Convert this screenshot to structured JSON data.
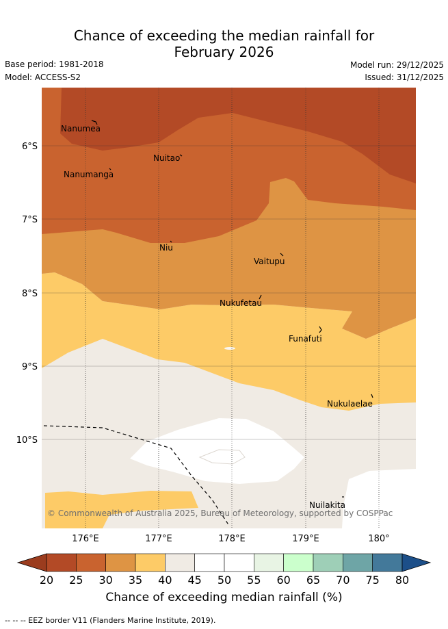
{
  "title_line1": "Chance of exceeding the median rainfall for",
  "title_line2": "February 2026",
  "base_period": "Base period: 1981-2018",
  "model": "Model: ACCESS-S2",
  "model_run": "Model run: 29/12/2025",
  "issued": "Issued: 31/12/2025",
  "places": {
    "nanumea": "Nanumea",
    "nuitao": "Nuitao",
    "nanumanga": "Nanumanga",
    "niu": "Niu",
    "vaitupu": "Vaitupu",
    "nukufetau": "Nukufetau",
    "funafuti": "Funafuti",
    "nukulaelae": "Nukulaelae",
    "nuilakita": "Nuilakita"
  },
  "lat_ticks": [
    "6°S",
    "7°S",
    "8°S",
    "9°S",
    "10°S"
  ],
  "lon_ticks": [
    "176°E",
    "177°E",
    "178°E",
    "179°E",
    "180°"
  ],
  "copyright": "© Commonwealth of Australia 2025, Bureau of Meteorology, supported by COSPPac",
  "colorbar": {
    "labels": [
      "20",
      "25",
      "30",
      "35",
      "40",
      "45",
      "50",
      "55",
      "60",
      "65",
      "70",
      "75",
      "80"
    ],
    "colors": [
      "#b34a26",
      "#c9632f",
      "#de9444",
      "#fdcb67",
      "#f0ebe4",
      "#ffffff",
      "#ffffff",
      "#e8f4e4",
      "#cbffcc",
      "#9ecfb7",
      "#6ea5a6",
      "#43799a",
      "#1c4f89"
    ],
    "title": "Chance of exceeding median rainfall (%)"
  },
  "legend": "-- -- -- EEZ border V11 (Flanders Marine Institute, 2019)."
}
